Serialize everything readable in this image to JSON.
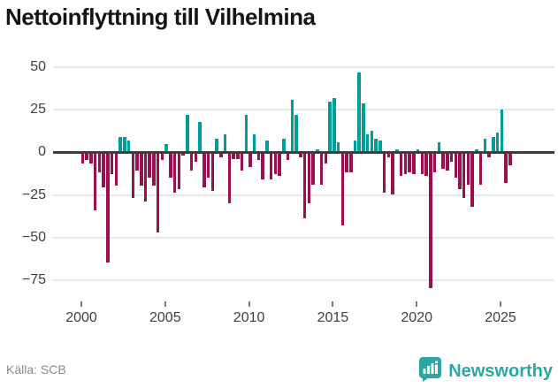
{
  "title": "Nettoinflyttning till Vilhelmina",
  "source_label": "Källa: SCB",
  "brand": {
    "name": "Newsworthy",
    "logo_icon": "bar-chart-speech-bubble",
    "color": "#2ca6a1"
  },
  "colors": {
    "positive": "#009e9a",
    "negative": "#99104f",
    "axis": "#3d3d3d",
    "grid": "#e7e7e7",
    "title": "#151515",
    "tick_text": "#3f3f3f",
    "source_text": "#8a8a8a"
  },
  "chart_data": {
    "type": "bar",
    "title": "Nettoinflyttning till Vilhelmina",
    "frequency": "quarterly",
    "start": "2000-Q1",
    "end": "2025-Q3",
    "xlabel": "",
    "ylabel": "",
    "ylim": [
      -85,
      55
    ],
    "grid": "horizontal",
    "yticks": [
      50,
      25,
      0,
      -25,
      -50,
      -75
    ],
    "ytick_labels": [
      "50",
      "25",
      "0",
      "−25",
      "−50",
      "−75"
    ],
    "xticks": [
      2000,
      2005,
      2010,
      2015,
      2020,
      2025
    ],
    "xtick_labels": [
      "2000",
      "2005",
      "2010",
      "2015",
      "2020",
      "2025"
    ],
    "values": [
      -6,
      -4,
      -6,
      -33,
      -11,
      -20,
      -64,
      -12,
      -19,
      8,
      8,
      6,
      -26,
      -10,
      -19,
      -28,
      -14,
      -19,
      -46,
      -4,
      4,
      -14,
      -23,
      -21,
      -1,
      21,
      -10,
      -5,
      17,
      -20,
      -14,
      -22,
      7,
      -2,
      10,
      -29,
      -3,
      -3,
      -10,
      21,
      -8,
      10,
      -4,
      -15,
      6,
      -15,
      -12,
      -13,
      7,
      -4,
      30,
      21,
      -2,
      -38,
      -29,
      -18,
      1,
      -18,
      -6,
      29,
      31,
      5,
      -42,
      -11,
      -11,
      6,
      46,
      28,
      10,
      12,
      7,
      6,
      -23,
      -2,
      -24,
      1,
      -13,
      -12,
      -11,
      -12,
      1,
      -12,
      -13,
      -79,
      -11,
      5,
      -9,
      -10,
      -5,
      -14,
      -21,
      -26,
      -18,
      -31,
      1,
      -18,
      7,
      -2,
      8,
      11,
      24,
      -17,
      -7
    ]
  }
}
